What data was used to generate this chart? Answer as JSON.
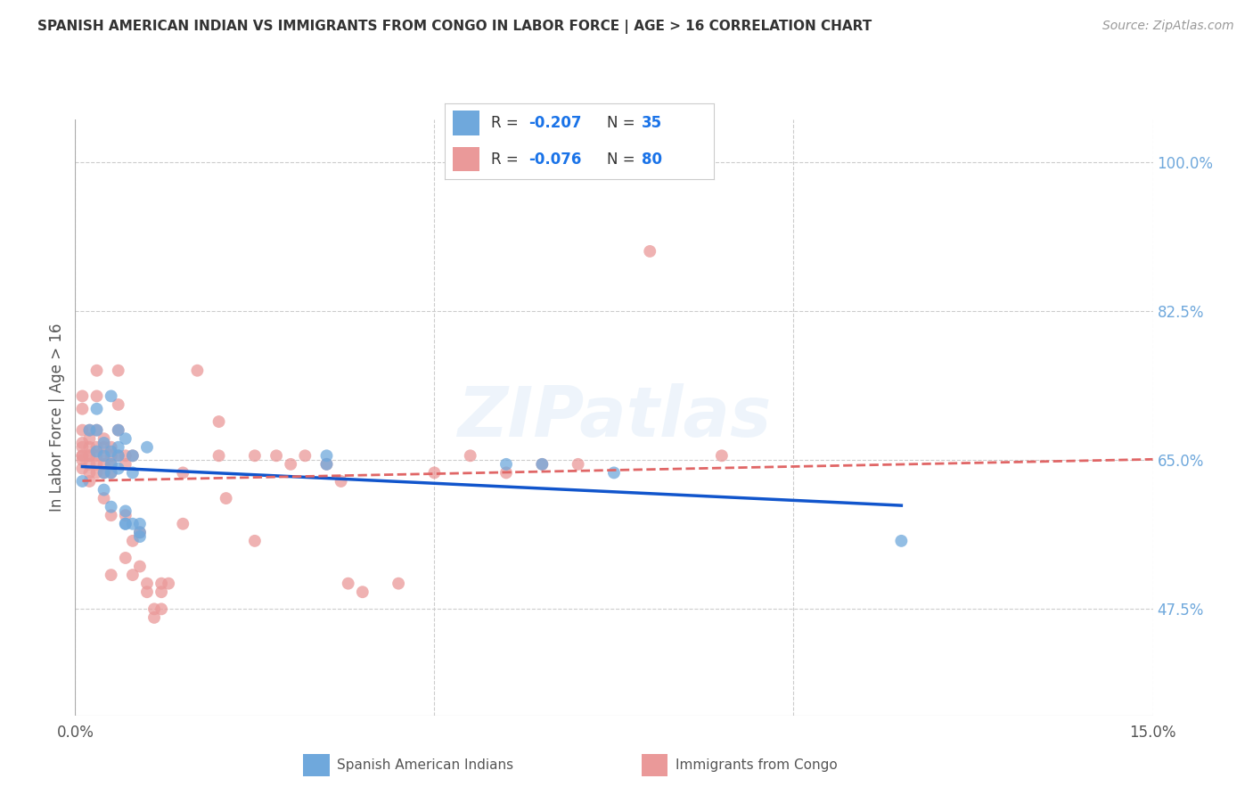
{
  "title": "SPANISH AMERICAN INDIAN VS IMMIGRANTS FROM CONGO IN LABOR FORCE | AGE > 16 CORRELATION CHART",
  "source": "Source: ZipAtlas.com",
  "ylabel": "In Labor Force | Age > 16",
  "xlim": [
    0.0,
    0.15
  ],
  "ylim": [
    0.35,
    1.05
  ],
  "right_yticks": [
    0.475,
    0.65,
    0.825,
    1.0
  ],
  "right_ytick_labels": [
    "47.5%",
    "65.0%",
    "82.5%",
    "100.0%"
  ],
  "xtick_positions": [
    0.0,
    0.05,
    0.1,
    0.15
  ],
  "xtick_labels": [
    "0.0%",
    "",
    "",
    "15.0%"
  ],
  "legend_r1": "R = -0.207",
  "legend_n1": "N = 35",
  "legend_r2": "R = -0.076",
  "legend_n2": "N = 80",
  "blue_color": "#6fa8dc",
  "pink_color": "#ea9999",
  "blue_line_color": "#1155cc",
  "pink_line_color": "#e06666",
  "blue_scatter": [
    [
      0.001,
      0.625
    ],
    [
      0.002,
      0.685
    ],
    [
      0.003,
      0.685
    ],
    [
      0.003,
      0.66
    ],
    [
      0.003,
      0.71
    ],
    [
      0.004,
      0.655
    ],
    [
      0.004,
      0.635
    ],
    [
      0.004,
      0.615
    ],
    [
      0.004,
      0.67
    ],
    [
      0.005,
      0.725
    ],
    [
      0.005,
      0.66
    ],
    [
      0.005,
      0.645
    ],
    [
      0.005,
      0.635
    ],
    [
      0.005,
      0.595
    ],
    [
      0.006,
      0.655
    ],
    [
      0.006,
      0.64
    ],
    [
      0.006,
      0.665
    ],
    [
      0.006,
      0.685
    ],
    [
      0.007,
      0.675
    ],
    [
      0.007,
      0.575
    ],
    [
      0.007,
      0.59
    ],
    [
      0.007,
      0.575
    ],
    [
      0.008,
      0.655
    ],
    [
      0.008,
      0.635
    ],
    [
      0.008,
      0.575
    ],
    [
      0.009,
      0.575
    ],
    [
      0.009,
      0.56
    ],
    [
      0.009,
      0.565
    ],
    [
      0.01,
      0.665
    ],
    [
      0.035,
      0.655
    ],
    [
      0.035,
      0.645
    ],
    [
      0.06,
      0.645
    ],
    [
      0.065,
      0.645
    ],
    [
      0.075,
      0.635
    ],
    [
      0.115,
      0.555
    ]
  ],
  "pink_scatter": [
    [
      0.001,
      0.655
    ],
    [
      0.001,
      0.685
    ],
    [
      0.001,
      0.655
    ],
    [
      0.001,
      0.665
    ],
    [
      0.001,
      0.64
    ],
    [
      0.001,
      0.65
    ],
    [
      0.001,
      0.67
    ],
    [
      0.001,
      0.71
    ],
    [
      0.001,
      0.725
    ],
    [
      0.002,
      0.655
    ],
    [
      0.002,
      0.665
    ],
    [
      0.002,
      0.655
    ],
    [
      0.002,
      0.645
    ],
    [
      0.002,
      0.635
    ],
    [
      0.002,
      0.685
    ],
    [
      0.002,
      0.675
    ],
    [
      0.002,
      0.625
    ],
    [
      0.003,
      0.655
    ],
    [
      0.003,
      0.645
    ],
    [
      0.003,
      0.665
    ],
    [
      0.003,
      0.635
    ],
    [
      0.003,
      0.755
    ],
    [
      0.003,
      0.725
    ],
    [
      0.003,
      0.685
    ],
    [
      0.004,
      0.655
    ],
    [
      0.004,
      0.645
    ],
    [
      0.004,
      0.665
    ],
    [
      0.004,
      0.635
    ],
    [
      0.004,
      0.675
    ],
    [
      0.004,
      0.605
    ],
    [
      0.005,
      0.655
    ],
    [
      0.005,
      0.645
    ],
    [
      0.005,
      0.665
    ],
    [
      0.005,
      0.515
    ],
    [
      0.005,
      0.635
    ],
    [
      0.005,
      0.585
    ],
    [
      0.006,
      0.655
    ],
    [
      0.006,
      0.715
    ],
    [
      0.006,
      0.685
    ],
    [
      0.006,
      0.755
    ],
    [
      0.007,
      0.655
    ],
    [
      0.007,
      0.645
    ],
    [
      0.007,
      0.535
    ],
    [
      0.007,
      0.585
    ],
    [
      0.008,
      0.655
    ],
    [
      0.008,
      0.555
    ],
    [
      0.008,
      0.515
    ],
    [
      0.009,
      0.525
    ],
    [
      0.009,
      0.565
    ],
    [
      0.01,
      0.505
    ],
    [
      0.01,
      0.495
    ],
    [
      0.011,
      0.475
    ],
    [
      0.011,
      0.465
    ],
    [
      0.012,
      0.495
    ],
    [
      0.012,
      0.505
    ],
    [
      0.012,
      0.475
    ],
    [
      0.013,
      0.505
    ],
    [
      0.015,
      0.635
    ],
    [
      0.015,
      0.575
    ],
    [
      0.017,
      0.755
    ],
    [
      0.02,
      0.695
    ],
    [
      0.02,
      0.655
    ],
    [
      0.021,
      0.605
    ],
    [
      0.025,
      0.655
    ],
    [
      0.025,
      0.555
    ],
    [
      0.028,
      0.655
    ],
    [
      0.03,
      0.645
    ],
    [
      0.032,
      0.655
    ],
    [
      0.035,
      0.645
    ],
    [
      0.037,
      0.625
    ],
    [
      0.038,
      0.505
    ],
    [
      0.04,
      0.495
    ],
    [
      0.045,
      0.505
    ],
    [
      0.05,
      0.635
    ],
    [
      0.055,
      0.655
    ],
    [
      0.06,
      0.635
    ],
    [
      0.065,
      0.645
    ],
    [
      0.07,
      0.645
    ],
    [
      0.08,
      0.895
    ],
    [
      0.09,
      0.655
    ]
  ],
  "watermark": "ZIPatlas",
  "background_color": "#ffffff",
  "grid_color": "#cccccc",
  "grid_linestyle": "--"
}
